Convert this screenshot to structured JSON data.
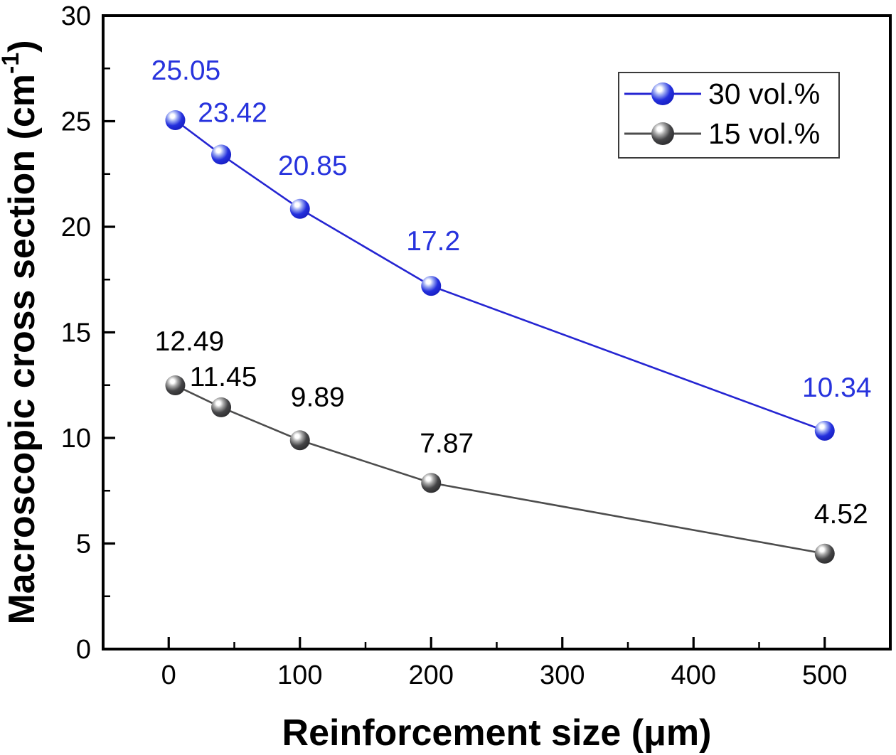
{
  "figure": {
    "background": "#ffffff",
    "axis_color": "#000000"
  },
  "chart_data": {
    "type": "line",
    "title": "",
    "xlabel": "Reinforcement size (μm)",
    "ylabel": "Macroscopic cross section (cm⁻¹)",
    "ylabel_parts": {
      "prefix": "Macroscopic cross section (cm",
      "superscript": "-1",
      "suffix": ")"
    },
    "xlim": [
      -50,
      550
    ],
    "ylim": [
      0,
      30
    ],
    "grid": false,
    "x_major_ticks": [
      0,
      100,
      200,
      300,
      400,
      500
    ],
    "x_minor_ticks": [
      50,
      150,
      250,
      350,
      450
    ],
    "y_major_ticks": [
      0,
      5,
      10,
      15,
      20,
      25,
      30
    ],
    "y_minor_ticks": [
      2.5,
      7.5,
      12.5,
      17.5,
      22.5,
      27.5
    ],
    "x": [
      5,
      40,
      100,
      200,
      500
    ],
    "series": [
      {
        "name": "30 vol.%",
        "values": [
          25.05,
          23.42,
          20.85,
          17.2,
          10.34
        ],
        "labels": [
          "25.05",
          "23.42",
          "20.85",
          "17.2",
          "10.34"
        ],
        "line_color": "#2525d2",
        "label_color": "#2733dd",
        "ball": {
          "highlight": "#ffffff",
          "halo": "#99a7f2",
          "body": "#2430dd",
          "edge": "#161dc0"
        },
        "label_offsets": [
          [
            15,
            -57
          ],
          [
            16,
            -46
          ],
          [
            18,
            -48
          ],
          [
            3,
            -50
          ],
          [
            17,
            -48
          ]
        ]
      },
      {
        "name": "15 vol.%",
        "values": [
          12.49,
          11.45,
          9.89,
          7.87,
          4.52
        ],
        "labels": [
          "12.49",
          "11.45",
          "9.89",
          "7.87",
          "4.52"
        ],
        "line_color": "#4d4d4d",
        "label_color": "#000000",
        "ball": {
          "highlight": "#ffffff",
          "halo": "#a8a8a8",
          "body": "#454547",
          "edge": "#2b2b2d"
        },
        "label_offsets": [
          [
            20,
            -49
          ],
          [
            3,
            -30
          ],
          [
            25,
            -48
          ],
          [
            22,
            -43
          ],
          [
            23,
            -43
          ]
        ]
      }
    ],
    "legend": {
      "position": "top-right",
      "entries": [
        "30 vol.%",
        "15 vol.%"
      ]
    }
  }
}
